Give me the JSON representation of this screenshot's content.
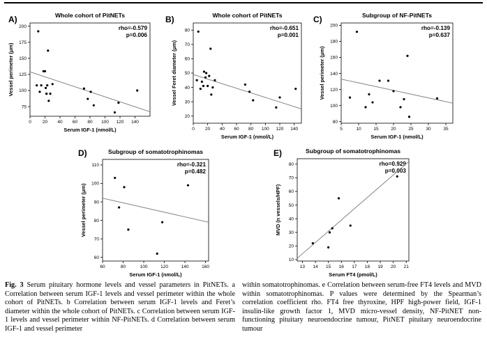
{
  "caption": {
    "figure_label": "Fig. 3",
    "left_text": "Serum pituitary hormone levels and vessel parameters in PitNETs. a Correlation between serum IGF-1 levels and vessel perimeter within the whole cohort of PitNETs. b Correlation between serum IGF-1 levels and Feret’s diameter within the whole cohort of PitNETs. c Correlation between serum IGF-1 levels and vessel perimeter within NF-PitNETs. d Correlation between serum IGF-1 and vessel perimeter",
    "right_text": "within somatotrophinomas. e Correlation between serum-free FT4 levels and MVD within somatotrophinomas. P values were determined by the Spearman’s correlation coefficient rho. FT4 free thyroxine, HPF high-power field, IGF-1 insulin-like growth factor 1, MVD micro-vessel density, NF-PitNET non-functioning pituitary neuroendocrine tumour, PitNET pituitary neuroendocrine tumour"
  },
  "chart_data": [
    {
      "type": "scatter",
      "panel": "A)",
      "title": "Whole cohort of PitNETs",
      "xlabel": "Serum IGF-1 (nmol/L)",
      "ylabel": "Vessel perimeter (μm)",
      "rho": "rho=-0.579",
      "p": "p=0.006",
      "xlim": [
        0,
        160
      ],
      "ylim": [
        60,
        205
      ],
      "xticks": [
        0,
        20,
        40,
        60,
        80,
        100,
        120,
        140
      ],
      "yticks": [
        75,
        100,
        125,
        150,
        175,
        200
      ],
      "x": [
        9,
        11,
        13,
        15,
        18,
        20,
        21,
        22,
        22,
        23,
        24,
        25,
        27,
        30,
        72,
        77,
        81,
        85,
        113,
        118,
        143
      ],
      "y": [
        108,
        192,
        98,
        108,
        130,
        130,
        104,
        95,
        95,
        108,
        162,
        84,
        95,
        110,
        103,
        87,
        98,
        77,
        66,
        81,
        100
      ],
      "fit": [
        [
          0,
          129
        ],
        [
          160,
          67
        ]
      ]
    },
    {
      "type": "scatter",
      "panel": "B)",
      "title": "Whole cohort of PitNETs",
      "xlabel": "Serum IGF-1 (nmol/L)",
      "ylabel": "Vessel Feret diameter (μm)",
      "rho": "rho=-0.651",
      "p": "p=0.001",
      "xlim": [
        0,
        150
      ],
      "ylim": [
        15,
        85
      ],
      "xticks": [
        0,
        20,
        40,
        60,
        80,
        100,
        120,
        140
      ],
      "yticks": [
        20,
        30,
        40,
        50,
        60,
        70,
        80
      ],
      "x": [
        5,
        7,
        10,
        12,
        14,
        15,
        17,
        18,
        20,
        22,
        24,
        25,
        27,
        30,
        72,
        78,
        83,
        115,
        120,
        142
      ],
      "y": [
        45,
        79,
        39,
        44,
        41,
        51,
        47,
        50,
        41,
        48,
        67,
        35,
        40,
        45,
        42,
        37,
        31,
        26,
        33,
        39
      ],
      "fit": [
        [
          0,
          49
        ],
        [
          150,
          25
        ]
      ]
    },
    {
      "type": "scatter",
      "panel": "C)",
      "title": "Subgroup of NF-PitNETs",
      "xlabel": "Serum IGF-1 (nmol/L)",
      "ylabel": "Vessel perimeter (μm)",
      "rho": "rho=-0.139",
      "p": "p=0.637",
      "xlim": [
        5,
        37
      ],
      "ylim": [
        78,
        203
      ],
      "xticks": [
        5,
        10,
        15,
        20,
        25,
        30,
        35
      ],
      "yticks": [
        80,
        100,
        120,
        140,
        160,
        180,
        200
      ],
      "x": [
        7.5,
        9.5,
        12,
        13,
        14,
        16,
        18.5,
        20,
        22,
        23,
        24,
        24.5,
        32.5
      ],
      "y": [
        110,
        192,
        98,
        114,
        104,
        131,
        131,
        118,
        98,
        108,
        162,
        86,
        109
      ],
      "fit": [
        [
          5,
          133
        ],
        [
          37,
          103
        ]
      ]
    },
    {
      "type": "scatter",
      "panel": "D)",
      "title": "Subgroup of somatotrophinomas",
      "xlabel": "Serum IGF-1 (nmol/L)",
      "ylabel": "Vessel perimeter (μm)",
      "rho": "rho=-0.321",
      "p": "p=0.482",
      "xlim": [
        60,
        163
      ],
      "ylim": [
        58,
        113
      ],
      "xticks": [
        60,
        80,
        100,
        120,
        140,
        160
      ],
      "yticks": [
        60,
        70,
        80,
        90,
        100,
        110
      ],
      "x": [
        72,
        76,
        81,
        85,
        113,
        118,
        143
      ],
      "y": [
        103,
        87,
        98,
        75,
        62,
        79,
        99
      ],
      "fit": [
        [
          60,
          92
        ],
        [
          163,
          79
        ]
      ]
    },
    {
      "type": "scatter",
      "panel": "E)",
      "title": "Subgroup of somatotrophinomas",
      "xlabel": "Serum FT4 (pmol/L)",
      "ylabel": "MVD (n vessels/HPF)",
      "rho": "rho=0.929",
      "p": "p=0.003",
      "xlim": [
        12.6,
        21.2
      ],
      "ylim": [
        9,
        84
      ],
      "xticks": [
        13,
        14,
        15,
        16,
        17,
        18,
        19,
        20,
        21
      ],
      "yticks": [
        10,
        20,
        30,
        40,
        50,
        60,
        70,
        80
      ],
      "x": [
        13.8,
        15,
        15.1,
        15.3,
        15.8,
        16.7,
        20.3
      ],
      "y": [
        22,
        19,
        30,
        33,
        55,
        35,
        71
      ],
      "fit": [
        [
          12.6,
          11
        ],
        [
          21.2,
          82
        ]
      ]
    }
  ]
}
